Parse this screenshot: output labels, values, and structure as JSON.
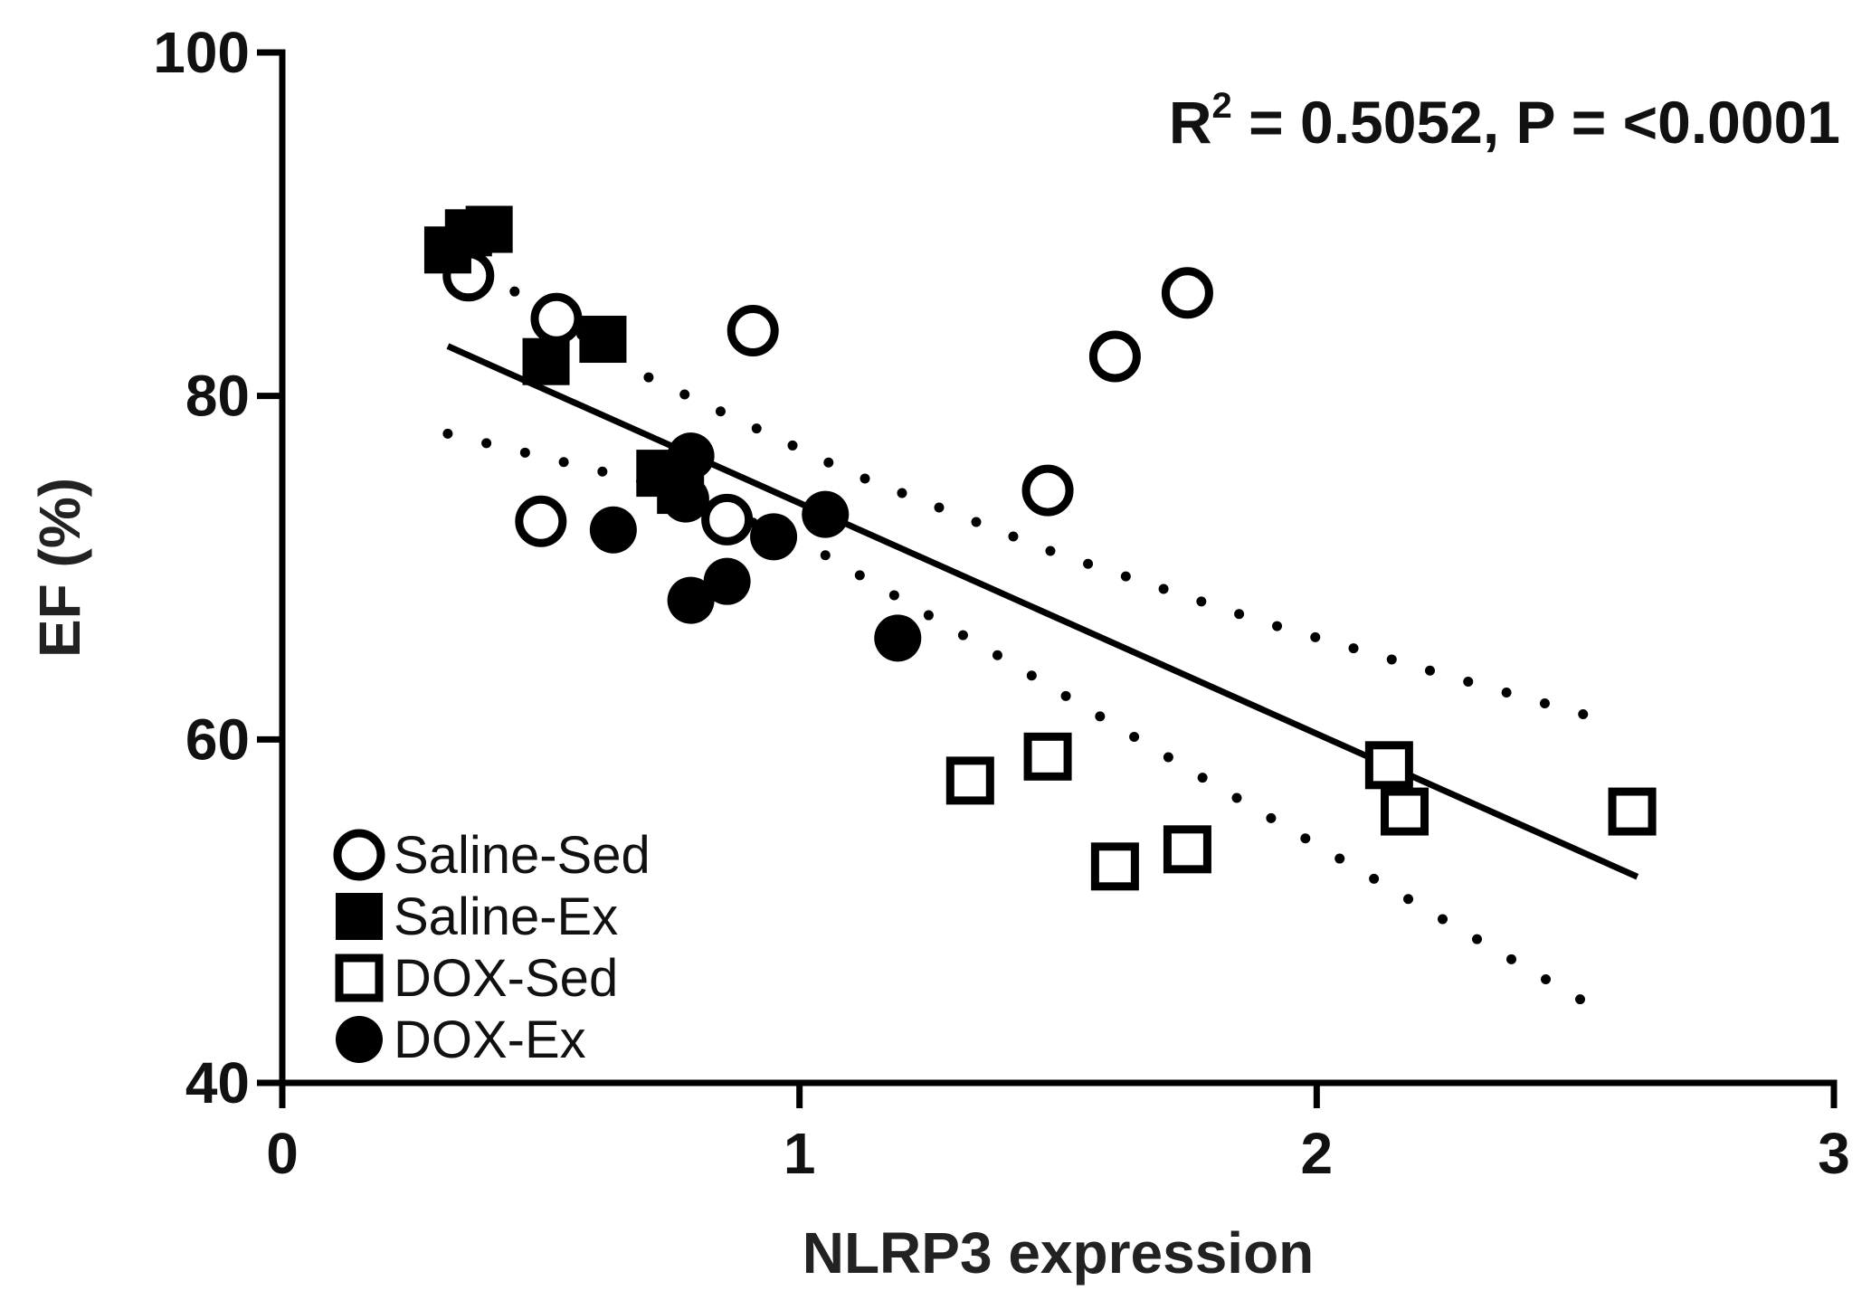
{
  "chart_data": {
    "type": "scatter",
    "xlabel": "NLRP3 expression",
    "ylabel": "EF (%)",
    "xlim": [
      0,
      3
    ],
    "ylim": [
      40,
      100
    ],
    "xticks": [
      0,
      1,
      2,
      3
    ],
    "yticks": [
      40,
      60,
      80,
      100
    ],
    "x_tick_labels": [
      "0",
      "1",
      "2",
      "3"
    ],
    "y_tick_labels": [
      "40",
      "60",
      "80",
      "100"
    ],
    "annotation": {
      "r_label": "R",
      "r_superscript": "2",
      "text_rest": " = 0.5052, P = <0.0001"
    },
    "legend_position": "bottom-left",
    "series": [
      {
        "name": "Saline-Sed",
        "marker": "open-circle",
        "points": [
          [
            0.36,
            87.0
          ],
          [
            0.53,
            84.5
          ],
          [
            0.91,
            83.8
          ],
          [
            1.61,
            82.3
          ],
          [
            1.75,
            86.0
          ],
          [
            1.48,
            74.5
          ],
          [
            0.5,
            72.7
          ],
          [
            0.86,
            72.8
          ]
        ]
      },
      {
        "name": "Saline-Ex",
        "marker": "filled-square",
        "points": [
          [
            0.32,
            88.5
          ],
          [
            0.36,
            89.5
          ],
          [
            0.4,
            89.7
          ],
          [
            0.51,
            82.0
          ],
          [
            0.62,
            83.3
          ],
          [
            0.73,
            75.5
          ],
          [
            0.77,
            74.5
          ]
        ]
      },
      {
        "name": "DOX-Sed",
        "marker": "open-square",
        "points": [
          [
            1.33,
            57.6
          ],
          [
            1.48,
            59.0
          ],
          [
            1.61,
            52.6
          ],
          [
            1.75,
            53.6
          ],
          [
            2.14,
            58.5
          ],
          [
            2.17,
            55.8
          ],
          [
            2.61,
            55.8
          ]
        ]
      },
      {
        "name": "DOX-Ex",
        "marker": "filled-circle",
        "points": [
          [
            0.64,
            72.2
          ],
          [
            0.79,
            76.5
          ],
          [
            0.78,
            74.0
          ],
          [
            0.79,
            68.1
          ],
          [
            0.86,
            69.2
          ],
          [
            0.95,
            71.8
          ],
          [
            1.05,
            73.1
          ],
          [
            1.19,
            65.9
          ]
        ]
      }
    ],
    "regression": {
      "x_start": 0.32,
      "y_start": 82.9,
      "x_end": 2.62,
      "y_end": 52.0
    },
    "confidence_band": {
      "upper": [
        [
          0.32,
          88.6
        ],
        [
          0.7,
          81.2
        ],
        [
          1.1,
          75.5
        ],
        [
          1.5,
          70.8
        ],
        [
          1.9,
          66.8
        ],
        [
          2.3,
          63.3
        ],
        [
          2.57,
          61.0
        ]
      ],
      "lower": [
        [
          0.32,
          77.8
        ],
        [
          0.7,
          75.0
        ],
        [
          1.0,
          71.6
        ],
        [
          1.4,
          64.6
        ],
        [
          1.8,
          57.4
        ],
        [
          2.2,
          50.3
        ],
        [
          2.57,
          43.8
        ]
      ]
    }
  }
}
